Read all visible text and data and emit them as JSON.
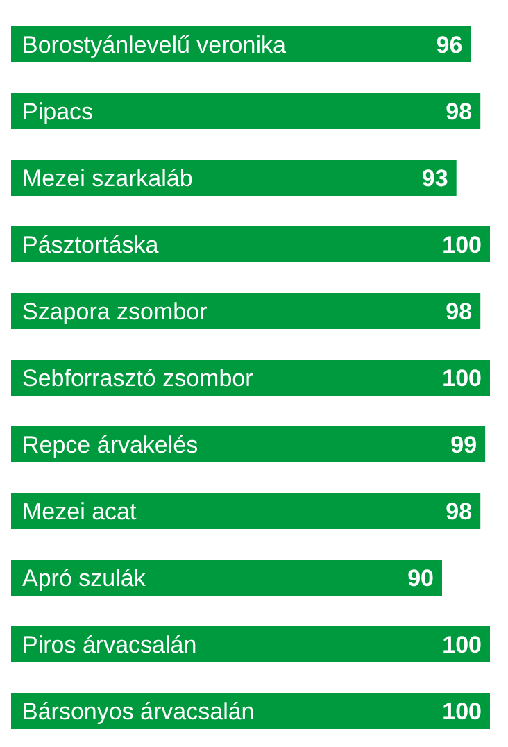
{
  "chart_data": {
    "type": "bar",
    "orientation": "horizontal",
    "categories": [
      "Borostyánlevelű veronika",
      "Pipacs",
      "Mezei szarkaláb",
      "Pásztortáska",
      "Szapora zsombor",
      "Sebforrasztó zsombor",
      "Repce árvakelés",
      "Mezei acat",
      "Apró szulák",
      "Piros árvacsalán",
      "Bársonyos árvacsalán"
    ],
    "values": [
      96,
      98,
      93,
      100,
      98,
      100,
      99,
      98,
      90,
      100,
      100
    ],
    "color": "#009a3e",
    "data_labels": true,
    "grid": false,
    "legend": false
  }
}
